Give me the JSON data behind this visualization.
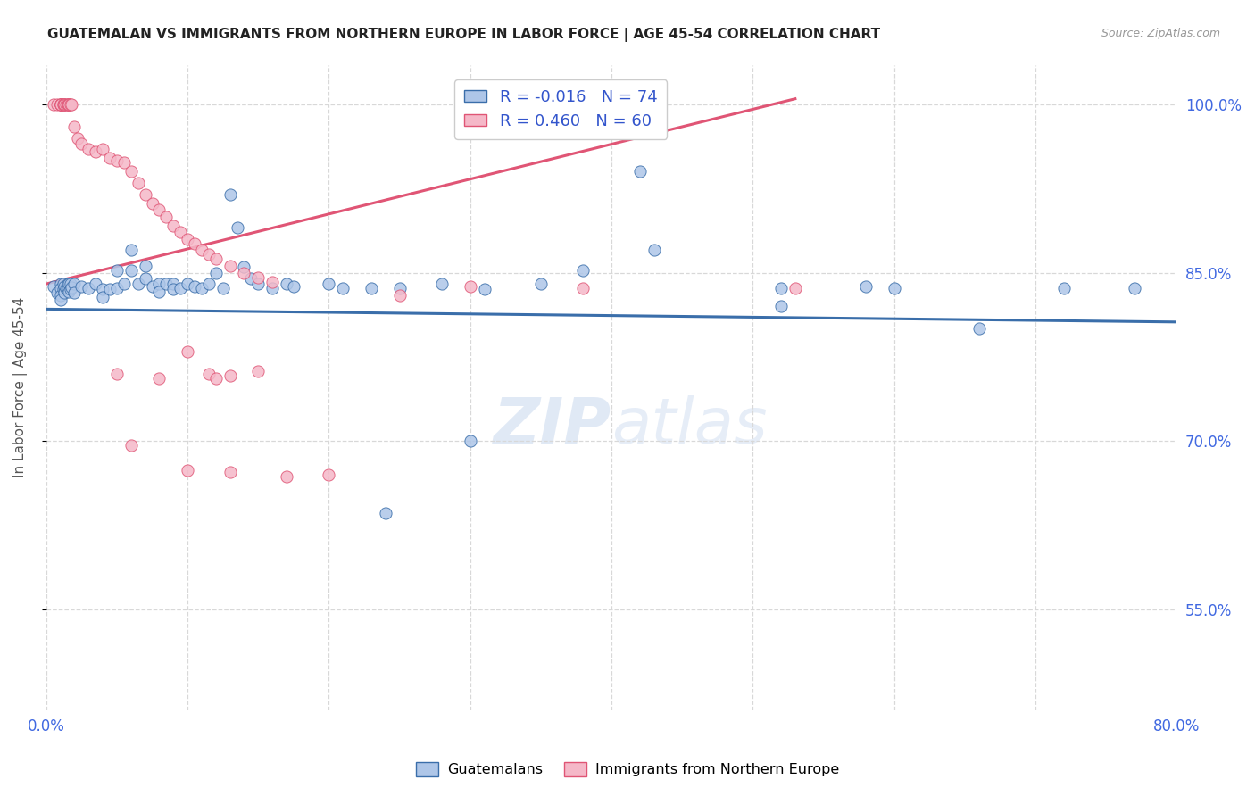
{
  "title": "GUATEMALAN VS IMMIGRANTS FROM NORTHERN EUROPE IN LABOR FORCE | AGE 45-54 CORRELATION CHART",
  "source": "Source: ZipAtlas.com",
  "ylabel": "In Labor Force | Age 45-54",
  "xlim": [
    0.0,
    0.8
  ],
  "ylim": [
    0.46,
    1.035
  ],
  "xticks": [
    0.0,
    0.1,
    0.2,
    0.3,
    0.4,
    0.5,
    0.6,
    0.7,
    0.8
  ],
  "xticklabels": [
    "0.0%",
    "",
    "",
    "",
    "",
    "",
    "",
    "",
    "80.0%"
  ],
  "ytick_positions": [
    0.55,
    0.7,
    0.85,
    1.0
  ],
  "ytick_labels": [
    "55.0%",
    "70.0%",
    "85.0%",
    "100.0%"
  ],
  "blue_R": "-0.016",
  "blue_N": "74",
  "pink_R": "0.460",
  "pink_N": "60",
  "blue_color": "#aec6e8",
  "pink_color": "#f5b8c8",
  "blue_line_color": "#3a6eaa",
  "pink_line_color": "#e05575",
  "blue_line": [
    [
      0.0,
      0.8175
    ],
    [
      0.8,
      0.806
    ]
  ],
  "pink_line": [
    [
      0.0,
      0.84
    ],
    [
      0.53,
      1.005
    ]
  ],
  "blue_scatter": [
    [
      0.005,
      0.838
    ],
    [
      0.008,
      0.832
    ],
    [
      0.01,
      0.84
    ],
    [
      0.01,
      0.836
    ],
    [
      0.01,
      0.83
    ],
    [
      0.01,
      0.826
    ],
    [
      0.012,
      0.84
    ],
    [
      0.012,
      0.835
    ],
    [
      0.013,
      0.838
    ],
    [
      0.013,
      0.832
    ],
    [
      0.014,
      0.836
    ],
    [
      0.015,
      0.84
    ],
    [
      0.015,
      0.836
    ],
    [
      0.016,
      0.84
    ],
    [
      0.016,
      0.833
    ],
    [
      0.017,
      0.84
    ],
    [
      0.017,
      0.835
    ],
    [
      0.018,
      0.837
    ],
    [
      0.02,
      0.84
    ],
    [
      0.02,
      0.832
    ],
    [
      0.025,
      0.838
    ],
    [
      0.03,
      0.836
    ],
    [
      0.035,
      0.84
    ],
    [
      0.04,
      0.835
    ],
    [
      0.04,
      0.828
    ],
    [
      0.045,
      0.835
    ],
    [
      0.05,
      0.852
    ],
    [
      0.05,
      0.836
    ],
    [
      0.055,
      0.84
    ],
    [
      0.06,
      0.87
    ],
    [
      0.06,
      0.852
    ],
    [
      0.065,
      0.84
    ],
    [
      0.07,
      0.856
    ],
    [
      0.07,
      0.845
    ],
    [
      0.075,
      0.838
    ],
    [
      0.08,
      0.84
    ],
    [
      0.08,
      0.833
    ],
    [
      0.085,
      0.84
    ],
    [
      0.09,
      0.84
    ],
    [
      0.09,
      0.835
    ],
    [
      0.095,
      0.836
    ],
    [
      0.1,
      0.84
    ],
    [
      0.105,
      0.838
    ],
    [
      0.11,
      0.836
    ],
    [
      0.115,
      0.84
    ],
    [
      0.12,
      0.85
    ],
    [
      0.125,
      0.836
    ],
    [
      0.13,
      0.92
    ],
    [
      0.135,
      0.89
    ],
    [
      0.14,
      0.855
    ],
    [
      0.145,
      0.845
    ],
    [
      0.15,
      0.84
    ],
    [
      0.16,
      0.836
    ],
    [
      0.17,
      0.84
    ],
    [
      0.175,
      0.838
    ],
    [
      0.2,
      0.84
    ],
    [
      0.21,
      0.836
    ],
    [
      0.23,
      0.836
    ],
    [
      0.25,
      0.836
    ],
    [
      0.28,
      0.84
    ],
    [
      0.31,
      0.835
    ],
    [
      0.35,
      0.84
    ],
    [
      0.38,
      0.852
    ],
    [
      0.42,
      0.94
    ],
    [
      0.43,
      0.87
    ],
    [
      0.52,
      0.82
    ],
    [
      0.52,
      0.836
    ],
    [
      0.58,
      0.838
    ],
    [
      0.6,
      0.836
    ],
    [
      0.66,
      0.8
    ],
    [
      0.72,
      0.836
    ],
    [
      0.77,
      0.836
    ],
    [
      0.24,
      0.636
    ],
    [
      0.3,
      0.7
    ]
  ],
  "pink_scatter": [
    [
      0.005,
      1.0
    ],
    [
      0.008,
      1.0
    ],
    [
      0.01,
      1.0
    ],
    [
      0.01,
      1.0
    ],
    [
      0.01,
      1.0
    ],
    [
      0.01,
      1.0
    ],
    [
      0.01,
      1.0
    ],
    [
      0.012,
      1.0
    ],
    [
      0.012,
      1.0
    ],
    [
      0.013,
      1.0
    ],
    [
      0.013,
      1.0
    ],
    [
      0.014,
      1.0
    ],
    [
      0.015,
      1.0
    ],
    [
      0.015,
      1.0
    ],
    [
      0.016,
      1.0
    ],
    [
      0.016,
      1.0
    ],
    [
      0.017,
      1.0
    ],
    [
      0.018,
      1.0
    ],
    [
      0.02,
      0.98
    ],
    [
      0.022,
      0.97
    ],
    [
      0.025,
      0.965
    ],
    [
      0.03,
      0.96
    ],
    [
      0.035,
      0.958
    ],
    [
      0.04,
      0.96
    ],
    [
      0.045,
      0.952
    ],
    [
      0.05,
      0.95
    ],
    [
      0.055,
      0.948
    ],
    [
      0.06,
      0.94
    ],
    [
      0.065,
      0.93
    ],
    [
      0.07,
      0.92
    ],
    [
      0.075,
      0.912
    ],
    [
      0.08,
      0.906
    ],
    [
      0.085,
      0.9
    ],
    [
      0.09,
      0.892
    ],
    [
      0.095,
      0.886
    ],
    [
      0.1,
      0.88
    ],
    [
      0.105,
      0.876
    ],
    [
      0.11,
      0.87
    ],
    [
      0.115,
      0.866
    ],
    [
      0.12,
      0.862
    ],
    [
      0.13,
      0.856
    ],
    [
      0.14,
      0.85
    ],
    [
      0.15,
      0.846
    ],
    [
      0.16,
      0.842
    ],
    [
      0.05,
      0.76
    ],
    [
      0.08,
      0.756
    ],
    [
      0.1,
      0.78
    ],
    [
      0.115,
      0.76
    ],
    [
      0.12,
      0.756
    ],
    [
      0.13,
      0.758
    ],
    [
      0.15,
      0.762
    ],
    [
      0.06,
      0.696
    ],
    [
      0.1,
      0.674
    ],
    [
      0.13,
      0.672
    ],
    [
      0.17,
      0.668
    ],
    [
      0.2,
      0.67
    ],
    [
      0.25,
      0.83
    ],
    [
      0.3,
      0.838
    ],
    [
      0.38,
      0.836
    ],
    [
      0.53,
      0.836
    ]
  ],
  "watermark_zip": "ZIP",
  "watermark_atlas": "atlas",
  "background_color": "#ffffff",
  "grid_color": "#d8d8d8"
}
